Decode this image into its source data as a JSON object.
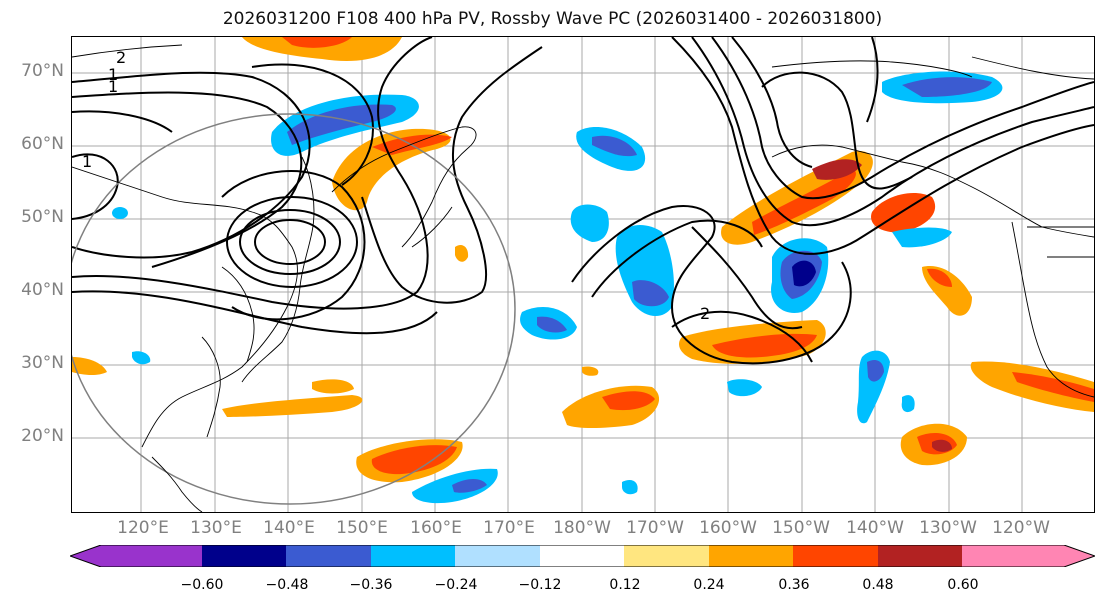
{
  "title": "2026031200 F108 400 hPa PV, Rossby Wave PC (2026031400 - 2026031800)",
  "lat_labels": [
    "70°N",
    "60°N",
    "50°N",
    "40°N",
    "30°N",
    "20°N"
  ],
  "lon_labels": [
    "120°E",
    "130°E",
    "140°E",
    "150°E",
    "160°E",
    "170°E",
    "180°W",
    "170°W",
    "160°W",
    "150°W",
    "140°W",
    "130°W",
    "120°W"
  ],
  "contour_labels": [
    "2",
    "1",
    "1",
    "1",
    "2"
  ],
  "colorbar": {
    "ticks": [
      "−0.60",
      "−0.48",
      "−0.36",
      "−0.24",
      "−0.12",
      "0.12",
      "0.24",
      "0.36",
      "0.48",
      "0.60"
    ],
    "colors": [
      "#9933cc",
      "#00008b",
      "#3b5bd1",
      "#00bfff",
      "#b0e0ff",
      "#ffffff",
      "#ffe680",
      "#ffa500",
      "#ff4500",
      "#b22222",
      "#ff85b3"
    ]
  },
  "colors": {
    "contour": "#000000",
    "grid": "#a9a9a9",
    "circle": "#808080",
    "label": "#808080"
  }
}
